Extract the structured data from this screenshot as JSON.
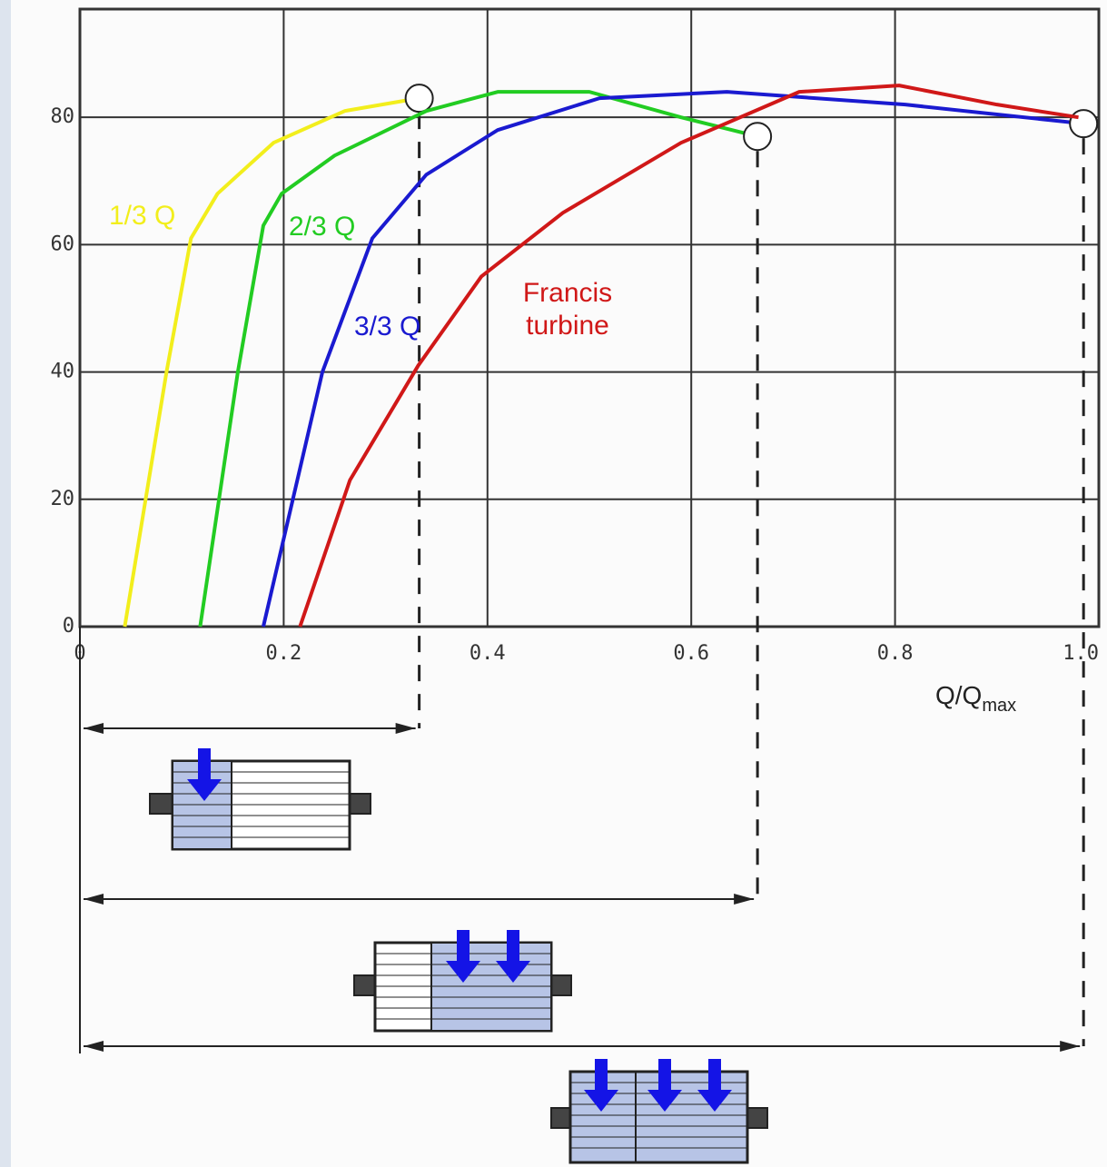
{
  "chart_data": {
    "type": "line",
    "xlabel": "Q/Q",
    "xlabel_subscript": "max",
    "xlim": [
      0,
      1
    ],
    "xticks": [
      0,
      0.2,
      0.4,
      0.6,
      0.8,
      {
        "value": 1,
        "label": "1.0"
      }
    ],
    "ylim": [
      0,
      97
    ],
    "yticks": [
      0,
      20,
      40,
      60,
      80
    ],
    "grid": true,
    "series": [
      {
        "name": "1/3 Q",
        "color": "#f2ee1c",
        "marker_end": true,
        "x": [
          0.044,
          0.085,
          0.109,
          0.135,
          0.19,
          0.26,
          0.333
        ],
        "values": [
          0,
          40,
          61,
          68,
          76,
          81,
          83
        ]
      },
      {
        "name": "2/3 Q",
        "color": "#22cc22",
        "marker_end": true,
        "x": [
          0.118,
          0.155,
          0.18,
          0.198,
          0.25,
          0.34,
          0.41,
          0.5,
          0.59,
          0.665
        ],
        "values": [
          0,
          40,
          63,
          68,
          74,
          81,
          84,
          84,
          80,
          77
        ]
      },
      {
        "name": "3/3 Q",
        "color": "#1a1ad0",
        "marker_end": true,
        "x": [
          0.18,
          0.238,
          0.287,
          0.34,
          0.41,
          0.51,
          0.635,
          0.81,
          0.985
        ],
        "values": [
          0,
          40,
          61,
          71,
          78,
          83,
          84,
          82,
          79
        ]
      },
      {
        "name": "Francis turbine",
        "color": "#d01818",
        "marker_end": false,
        "x": [
          0.216,
          0.265,
          0.332,
          0.394,
          0.474,
          0.59,
          0.706,
          0.804,
          0.9,
          0.98
        ],
        "values": [
          0,
          23,
          41,
          55,
          65,
          76,
          84,
          85,
          82,
          80
        ]
      }
    ]
  }
}
